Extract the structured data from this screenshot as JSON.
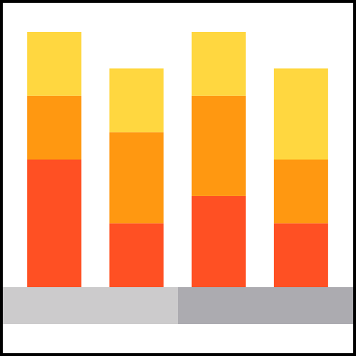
{
  "chart_data": {
    "type": "bar",
    "stacked": true,
    "categories": [
      null,
      null,
      null,
      null
    ],
    "series": [
      {
        "color": "#ff5023",
        "values": [
          14,
          7,
          10,
          7
        ]
      },
      {
        "color": "#ff9811",
        "values": [
          7,
          10,
          11,
          7
        ]
      },
      {
        "color": "#ffd740",
        "values": [
          7,
          7,
          7,
          10
        ]
      }
    ],
    "ylim": [
      0,
      28
    ]
  }
}
